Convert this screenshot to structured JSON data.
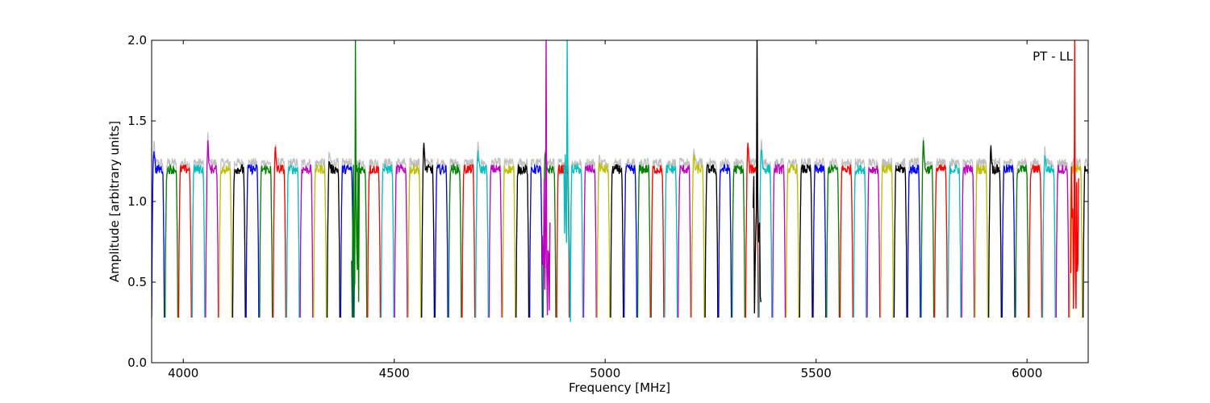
{
  "chart_data": {
    "type": "line",
    "xlabel": "Frequency [MHz]",
    "ylabel": "Amplitude [arbitrary units]",
    "annotation": "PT - LL",
    "xlim": [
      3925,
      6145
    ],
    "ylim": [
      0.0,
      2.0
    ],
    "x_ticks": [
      4000,
      4500,
      5000,
      5500,
      6000
    ],
    "y_ticks": [
      0.0,
      0.5,
      1.0,
      1.5,
      2.0
    ],
    "y_tick_labels": [
      "0.0",
      "0.5",
      "1.0",
      "1.5",
      "2.0"
    ],
    "grid": false,
    "channel_spacing_mhz": 32,
    "band_start_mhz": 3925,
    "passband_level": 1.2,
    "passband_floor": 0.28,
    "color_cycle": [
      "#0000ff",
      "#008000",
      "#ff0000",
      "#00bfbf",
      "#bf00bf",
      "#bfbf00",
      "#000000"
    ],
    "background_series": {
      "name": "",
      "color": "#bfbfbf"
    },
    "rfi_spikes": [
      {
        "x": 4408,
        "peak": 2.0,
        "color": "#008000"
      },
      {
        "x": 4860,
        "peak": 2.0,
        "color": "#bf00bf"
      },
      {
        "x": 4910,
        "peak": 2.0,
        "color": "#00bfbf"
      },
      {
        "x": 5360,
        "peak": 2.0,
        "color": "#000000"
      },
      {
        "x": 6113,
        "peak": 2.0,
        "color": "#ff0000"
      }
    ],
    "channel_peaks": [
      {
        "x": 3945,
        "y": 1.33
      },
      {
        "x": 4082,
        "y": 1.36
      },
      {
        "x": 4218,
        "y": 1.32
      },
      {
        "x": 4350,
        "y": 1.25
      },
      {
        "x": 4437,
        "y": 1.35
      },
      {
        "x": 4583,
        "y": 1.34
      },
      {
        "x": 4718,
        "y": 1.31
      },
      {
        "x": 4879,
        "y": 1.31
      },
      {
        "x": 4991,
        "y": 1.23
      },
      {
        "x": 5215,
        "y": 1.29
      },
      {
        "x": 5353,
        "y": 1.35
      },
      {
        "x": 5373,
        "y": 1.34
      },
      {
        "x": 5779,
        "y": 1.37
      },
      {
        "x": 5916,
        "y": 1.34
      },
      {
        "x": 6060,
        "y": 1.28
      }
    ]
  }
}
